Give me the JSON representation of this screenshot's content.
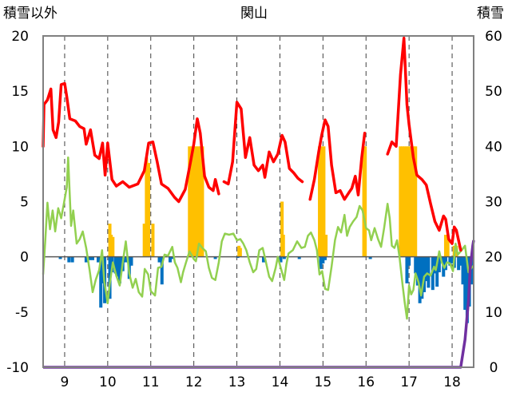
{
  "chart_data": {
    "type": "mixed",
    "title": "関山",
    "left_axis_label": "積雪以外",
    "right_axis_label": "積雪",
    "left_ticks": [
      "20",
      "15",
      "10",
      "5",
      "0",
      "-5",
      "-10"
    ],
    "right_ticks": [
      "60",
      "50",
      "40",
      "30",
      "20",
      "10",
      "0"
    ],
    "x_ticks": [
      "9",
      "10",
      "11",
      "12",
      "13",
      "14",
      "15",
      "16",
      "17",
      "18"
    ],
    "ylim_left": [
      -10,
      20
    ],
    "ylim_right": [
      0,
      60
    ],
    "xlim": [
      8.5,
      18.5
    ],
    "grid": "vertical dashed lines at each x tick",
    "colors": {
      "red_series": "#ff0000",
      "green_series": "#92d050",
      "orange_bars": "#ffc000",
      "blue_bars": "#0070c0",
      "purple_series": "#7030a0",
      "frame": "#808080"
    },
    "red_segments": [
      [
        [
          8.5,
          10
        ],
        [
          8.52,
          13.8
        ],
        [
          8.6,
          14.2
        ],
        [
          8.68,
          15.2
        ],
        [
          8.73,
          11.5
        ],
        [
          8.8,
          10.8
        ],
        [
          8.86,
          12.2
        ],
        [
          8.92,
          15.6
        ],
        [
          9.0,
          15.7
        ],
        [
          9.05,
          14.5
        ],
        [
          9.12,
          12.5
        ],
        [
          9.25,
          12.3
        ],
        [
          9.35,
          11.8
        ],
        [
          9.45,
          11.6
        ],
        [
          9.5,
          10.2
        ],
        [
          9.6,
          11.5
        ],
        [
          9.7,
          9.2
        ],
        [
          9.8,
          8.9
        ],
        [
          9.88,
          10.3
        ],
        [
          9.94,
          7.4
        ],
        [
          10.0,
          10.3
        ],
        [
          10.1,
          7.0
        ],
        [
          10.2,
          6.4
        ],
        [
          10.35,
          6.8
        ],
        [
          10.5,
          6.3
        ],
        [
          10.7,
          6.6
        ],
        [
          10.85,
          7.8
        ],
        [
          10.95,
          10.3
        ],
        [
          11.05,
          10.4
        ],
        [
          11.15,
          8.6
        ],
        [
          11.25,
          6.6
        ],
        [
          11.4,
          6.2
        ],
        [
          11.55,
          5.4
        ],
        [
          11.65,
          5.0
        ],
        [
          11.8,
          6.1
        ],
        [
          11.92,
          8.5
        ],
        [
          12.0,
          10.2
        ],
        [
          12.08,
          12.5
        ],
        [
          12.15,
          11.2
        ],
        [
          12.25,
          7.3
        ],
        [
          12.35,
          6.3
        ],
        [
          12.45,
          6.0
        ],
        [
          12.5,
          7.0
        ],
        [
          12.58,
          5.7
        ]
      ],
      [
        [
          12.7,
          6.8
        ],
        [
          12.8,
          6.6
        ],
        [
          12.9,
          8.6
        ],
        [
          13.0,
          14.0
        ],
        [
          13.1,
          13.4
        ],
        [
          13.2,
          9.0
        ],
        [
          13.3,
          10.8
        ],
        [
          13.4,
          8.3
        ],
        [
          13.5,
          7.8
        ],
        [
          13.6,
          8.3
        ],
        [
          13.65,
          7.2
        ],
        [
          13.75,
          9.5
        ],
        [
          13.85,
          8.6
        ],
        [
          13.95,
          9.3
        ],
        [
          14.05,
          11.0
        ],
        [
          14.12,
          10.4
        ],
        [
          14.22,
          8.0
        ],
        [
          14.32,
          7.6
        ],
        [
          14.42,
          7.1
        ],
        [
          14.52,
          6.8
        ]
      ],
      [
        [
          14.7,
          5.2
        ],
        [
          14.8,
          7.0
        ],
        [
          14.9,
          9.5
        ],
        [
          14.97,
          11.0
        ],
        [
          15.05,
          12.4
        ],
        [
          15.12,
          11.8
        ],
        [
          15.2,
          8.3
        ],
        [
          15.3,
          5.8
        ],
        [
          15.4,
          6.0
        ],
        [
          15.5,
          5.2
        ],
        [
          15.6,
          5.8
        ],
        [
          15.67,
          6.2
        ],
        [
          15.75,
          7.3
        ],
        [
          15.82,
          5.6
        ],
        [
          15.9,
          9.0
        ],
        [
          15.97,
          11.2
        ]
      ],
      [
        [
          16.5,
          9.3
        ],
        [
          16.6,
          10.4
        ],
        [
          16.7,
          10.0
        ],
        [
          16.8,
          16.5
        ],
        [
          16.88,
          19.8
        ],
        [
          16.95,
          13.8
        ],
        [
          17.0,
          12.0
        ],
        [
          17.1,
          9.0
        ],
        [
          17.18,
          7.4
        ],
        [
          17.3,
          7.0
        ],
        [
          17.4,
          6.5
        ],
        [
          17.5,
          4.8
        ],
        [
          17.6,
          3.2
        ],
        [
          17.7,
          2.4
        ],
        [
          17.8,
          3.7
        ],
        [
          17.85,
          3.4
        ],
        [
          17.92,
          1.6
        ],
        [
          18.0,
          1.2
        ],
        [
          18.05,
          2.7
        ],
        [
          18.1,
          2.4
        ],
        [
          18.2,
          0.6
        ]
      ]
    ],
    "green_values": [
      [
        8.5,
        -1.6
      ],
      [
        8.55,
        1.5
      ],
      [
        8.6,
        4.9
      ],
      [
        8.66,
        2.5
      ],
      [
        8.72,
        4.2
      ],
      [
        8.78,
        2.3
      ],
      [
        8.85,
        4.4
      ],
      [
        8.92,
        3.5
      ],
      [
        8.98,
        4.8
      ],
      [
        9.05,
        6.3
      ],
      [
        9.08,
        9.0
      ],
      [
        9.15,
        2.8
      ],
      [
        9.2,
        4.2
      ],
      [
        9.28,
        1.2
      ],
      [
        9.35,
        1.6
      ],
      [
        9.42,
        2.3
      ],
      [
        9.5,
        0.8
      ],
      [
        9.58,
        -1.2
      ],
      [
        9.65,
        -3.2
      ],
      [
        9.72,
        -2.1
      ],
      [
        9.8,
        -1.2
      ],
      [
        9.87,
        0.6
      ],
      [
        9.92,
        -2.2
      ],
      [
        10.0,
        -4.2
      ],
      [
        10.05,
        -2.4
      ],
      [
        10.12,
        -0.5
      ],
      [
        10.2,
        -1.7
      ],
      [
        10.28,
        -2.6
      ],
      [
        10.35,
        -0.5
      ],
      [
        10.42,
        1.4
      ],
      [
        10.5,
        -1.5
      ],
      [
        10.58,
        -2.8
      ],
      [
        10.65,
        -2.0
      ],
      [
        10.72,
        -3.2
      ],
      [
        10.8,
        -3.6
      ],
      [
        10.86,
        -1.1
      ],
      [
        10.94,
        -1.6
      ],
      [
        11.0,
        -3.1
      ],
      [
        11.1,
        -3.5
      ],
      [
        11.17,
        -1.0
      ],
      [
        11.25,
        -0.9
      ],
      [
        11.32,
        0.2
      ],
      [
        11.4,
        0.1
      ],
      [
        11.5,
        0.9
      ],
      [
        11.56,
        -0.5
      ],
      [
        11.62,
        -1.0
      ],
      [
        11.7,
        -2.3
      ],
      [
        11.75,
        -1.4
      ],
      [
        11.82,
        -0.5
      ],
      [
        11.9,
        0.5
      ],
      [
        12.0,
        -0.2
      ],
      [
        12.05,
        -0.4
      ],
      [
        12.12,
        1.2
      ],
      [
        12.2,
        0.8
      ],
      [
        12.28,
        0.5
      ],
      [
        12.35,
        -1.0
      ],
      [
        12.42,
        -1.9
      ],
      [
        12.5,
        -2.1
      ],
      [
        12.58,
        -0.5
      ],
      [
        12.65,
        1.4
      ],
      [
        12.72,
        2.1
      ],
      [
        12.82,
        2.0
      ],
      [
        12.92,
        2.1
      ],
      [
        13.0,
        1.5
      ],
      [
        13.08,
        1.6
      ],
      [
        13.15,
        1.2
      ],
      [
        13.22,
        0.6
      ],
      [
        13.3,
        -0.5
      ],
      [
        13.38,
        -1.4
      ],
      [
        13.45,
        -1.1
      ],
      [
        13.52,
        0.6
      ],
      [
        13.6,
        0.8
      ],
      [
        13.67,
        -0.4
      ],
      [
        13.75,
        -1.8
      ],
      [
        13.82,
        -2.2
      ],
      [
        13.9,
        -1.0
      ],
      [
        13.95,
        0.0
      ],
      [
        14.02,
        -1.0
      ],
      [
        14.1,
        -2.1
      ],
      [
        14.15,
        -0.7
      ],
      [
        14.2,
        0.3
      ],
      [
        14.3,
        0.6
      ],
      [
        14.4,
        1.4
      ],
      [
        14.5,
        0.8
      ],
      [
        14.58,
        0.9
      ],
      [
        14.65,
        1.9
      ],
      [
        14.72,
        2.2
      ],
      [
        14.8,
        1.5
      ],
      [
        14.86,
        0.6
      ],
      [
        14.92,
        -1.6
      ],
      [
        14.98,
        -1.3
      ],
      [
        15.05,
        -2.9
      ],
      [
        15.12,
        -3.0
      ],
      [
        15.2,
        -0.9
      ],
      [
        15.28,
        1.5
      ],
      [
        15.35,
        2.7
      ],
      [
        15.42,
        2.2
      ],
      [
        15.5,
        3.8
      ],
      [
        15.56,
        1.9
      ],
      [
        15.62,
        2.7
      ],
      [
        15.7,
        3.2
      ],
      [
        15.78,
        3.6
      ],
      [
        15.85,
        4.6
      ],
      [
        15.92,
        4.2
      ],
      [
        16.0,
        2.6
      ],
      [
        16.07,
        2.4
      ],
      [
        16.12,
        1.5
      ],
      [
        16.2,
        2.6
      ],
      [
        16.28,
        1.6
      ],
      [
        16.35,
        0.9
      ],
      [
        16.42,
        2.6
      ],
      [
        16.5,
        4.8
      ],
      [
        16.55,
        3.5
      ],
      [
        16.6,
        1.0
      ],
      [
        16.66,
        0.8
      ],
      [
        16.72,
        1.5
      ],
      [
        16.78,
        -0.1
      ],
      [
        16.85,
        -2.6
      ],
      [
        16.9,
        -4.2
      ],
      [
        16.95,
        -5.6
      ],
      [
        17.0,
        -2.6
      ],
      [
        17.05,
        -3.4
      ],
      [
        17.1,
        -3.0
      ],
      [
        17.15,
        -1.5
      ],
      [
        17.22,
        -2.3
      ],
      [
        17.28,
        -3.5
      ],
      [
        17.35,
        -1.8
      ],
      [
        17.42,
        -1.5
      ],
      [
        17.5,
        -1.7
      ],
      [
        17.58,
        -0.9
      ],
      [
        17.62,
        -1.2
      ],
      [
        17.7,
        0.5
      ],
      [
        17.76,
        -0.5
      ],
      [
        17.82,
        -1.0
      ],
      [
        17.88,
        -0.5
      ],
      [
        17.95,
        -0.6
      ],
      [
        18.02,
        -1.3
      ],
      [
        18.08,
        1.2
      ],
      [
        18.13,
        0.2
      ],
      [
        18.2,
        0.5
      ],
      [
        18.3,
        1.0
      ],
      [
        18.38,
        -1.4
      ],
      [
        18.45,
        -1.0
      ],
      [
        18.5,
        -0.8
      ]
    ],
    "orange_bars": [
      [
        10.05,
        3.0
      ],
      [
        10.08,
        2.0
      ],
      [
        10.12,
        1.8
      ],
      [
        10.85,
        3.0
      ],
      [
        10.9,
        9.0
      ],
      [
        10.95,
        8.5
      ],
      [
        11.05,
        3.0
      ],
      [
        11.9,
        10.0
      ],
      [
        11.95,
        10.0
      ],
      [
        12.0,
        10.0
      ],
      [
        12.05,
        10.0
      ],
      [
        12.1,
        10.0
      ],
      [
        12.15,
        10.0
      ],
      [
        12.2,
        10.0
      ],
      [
        13.05,
        1.0
      ],
      [
        13.08,
        0.8
      ],
      [
        14.05,
        5.0
      ],
      [
        14.08,
        2.0
      ],
      [
        14.92,
        10.0
      ],
      [
        14.97,
        10.0
      ],
      [
        15.02,
        10.0
      ],
      [
        15.07,
        2.0
      ],
      [
        15.95,
        10.0
      ],
      [
        15.98,
        10.0
      ],
      [
        16.8,
        10.0
      ],
      [
        16.85,
        10.0
      ],
      [
        16.9,
        10.0
      ],
      [
        16.95,
        10.0
      ],
      [
        17.0,
        10.0
      ],
      [
        17.05,
        10.0
      ],
      [
        17.1,
        10.0
      ],
      [
        17.15,
        10.0
      ],
      [
        17.85,
        2.0
      ],
      [
        17.9,
        2.0
      ],
      [
        18.05,
        1.0
      ],
      [
        18.1,
        1.0
      ]
    ],
    "blue_bars": [
      [
        8.9,
        -0.2
      ],
      [
        9.1,
        -0.5
      ],
      [
        9.18,
        -0.5
      ],
      [
        9.5,
        -0.5
      ],
      [
        9.58,
        -0.3
      ],
      [
        9.65,
        -0.3
      ],
      [
        9.78,
        -0.5
      ],
      [
        9.84,
        -4.6
      ],
      [
        9.88,
        -2.4
      ],
      [
        9.93,
        -4.2
      ],
      [
        10.05,
        -3.8
      ],
      [
        10.1,
        -1.4
      ],
      [
        10.18,
        -1.5
      ],
      [
        10.22,
        -1.8
      ],
      [
        10.28,
        -2.4
      ],
      [
        10.35,
        -1.3
      ],
      [
        10.42,
        -0.5
      ],
      [
        10.5,
        -2.0
      ],
      [
        10.55,
        -0.8
      ],
      [
        11.2,
        -0.5
      ],
      [
        11.26,
        -2.5
      ],
      [
        11.45,
        -0.5
      ],
      [
        11.5,
        -0.2
      ],
      [
        12.5,
        -0.2
      ],
      [
        13.02,
        -0.1
      ],
      [
        13.62,
        -0.5
      ],
      [
        14.02,
        -0.5
      ],
      [
        14.1,
        -0.2
      ],
      [
        14.45,
        -0.2
      ],
      [
        14.95,
        -1.1
      ],
      [
        15.0,
        -0.6
      ],
      [
        15.05,
        -0.3
      ],
      [
        16.1,
        -0.2
      ],
      [
        16.95,
        -2.4
      ],
      [
        17.0,
        -0.8
      ],
      [
        17.15,
        -1.5
      ],
      [
        17.2,
        -2.6
      ],
      [
        17.25,
        -4.2
      ],
      [
        17.3,
        -3.8
      ],
      [
        17.35,
        -3.2
      ],
      [
        17.4,
        -2.2
      ],
      [
        17.45,
        -2.8
      ],
      [
        17.55,
        -3.0
      ],
      [
        17.6,
        -1.5
      ],
      [
        17.65,
        -2.7
      ],
      [
        17.7,
        -1.4
      ],
      [
        17.75,
        -0.5
      ],
      [
        17.8,
        -1.8
      ],
      [
        17.85,
        -1.2
      ],
      [
        17.95,
        -0.8
      ],
      [
        18.0,
        -0.6
      ],
      [
        18.05,
        -1.0
      ],
      [
        18.15,
        -1.2
      ],
      [
        18.2,
        -0.8
      ],
      [
        18.25,
        -2.5
      ],
      [
        18.3,
        -4.8
      ],
      [
        18.35,
        -6.0
      ],
      [
        18.4,
        -4.5
      ],
      [
        18.45,
        -2.5
      ]
    ],
    "purple_values": [
      [
        8.5,
        0
      ],
      [
        18.2,
        0
      ],
      [
        18.3,
        5
      ],
      [
        18.38,
        12
      ],
      [
        18.42,
        18
      ],
      [
        18.48,
        22
      ],
      [
        18.5,
        23
      ]
    ]
  }
}
